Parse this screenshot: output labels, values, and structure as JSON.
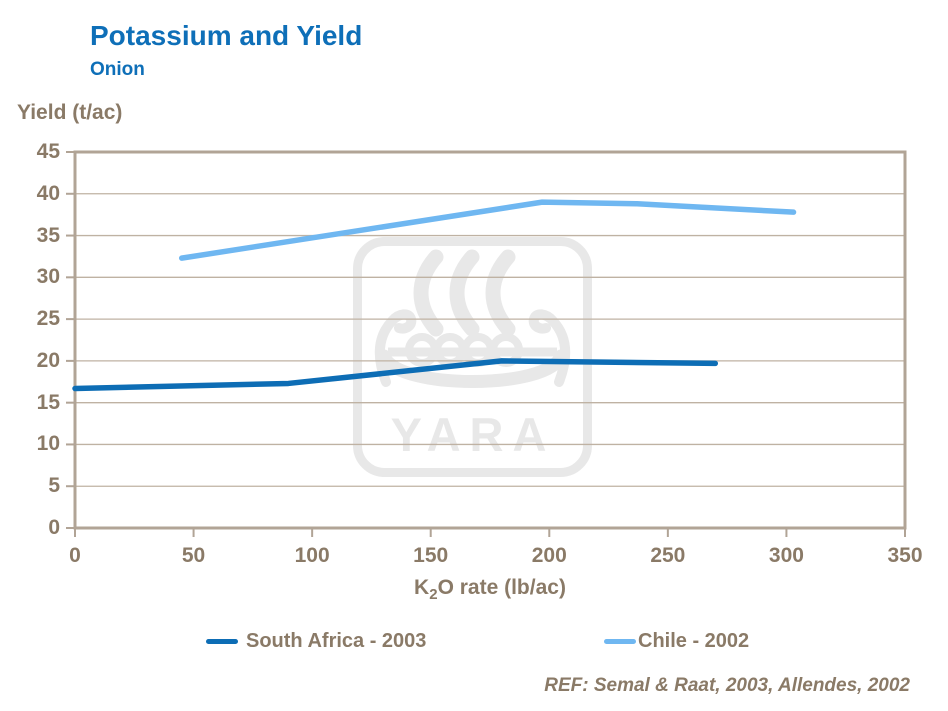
{
  "header": {
    "title": "Potassium and Yield",
    "subtitle": "Onion"
  },
  "axis": {
    "y_title": "Yield (t/ac)",
    "x_title_base": "K",
    "x_title_sub": "2",
    "x_title_rest": "O rate (lb/ac)"
  },
  "chart_data": {
    "type": "line",
    "title": "Potassium and Yield",
    "subtitle": "Onion",
    "xlabel": "K₂O rate (lb/ac)",
    "ylabel": "Yield (t/ac)",
    "xlim": [
      0,
      350
    ],
    "ylim": [
      0,
      45
    ],
    "x_ticks": [
      0,
      50,
      100,
      150,
      200,
      250,
      300,
      350
    ],
    "y_ticks": [
      0,
      5,
      10,
      15,
      20,
      25,
      30,
      35,
      40,
      45
    ],
    "grid": "horizontal",
    "legend_position": "bottom",
    "series": [
      {
        "name": "South Africa - 2003",
        "color": "#0d6db5",
        "x": [
          0,
          90,
          180,
          270
        ],
        "y": [
          16.7,
          17.3,
          20.0,
          19.7
        ]
      },
      {
        "name": "Chile - 2002",
        "color": "#6fb7f1",
        "x": [
          45,
          197,
          237,
          303
        ],
        "y": [
          32.3,
          39.0,
          38.8,
          37.8
        ]
      }
    ]
  },
  "watermark": {
    "text": "YARA"
  },
  "footer": {
    "reference": "REF: Semal & Raat, 2003, Allendes, 2002"
  },
  "colors": {
    "title_blue": "#0e6fb8",
    "text_brown": "#8a7a67",
    "grid": "#bfb2a3",
    "axis_border": "#b1a496",
    "watermark": "#e8e8e8",
    "background": "#ffffff"
  }
}
